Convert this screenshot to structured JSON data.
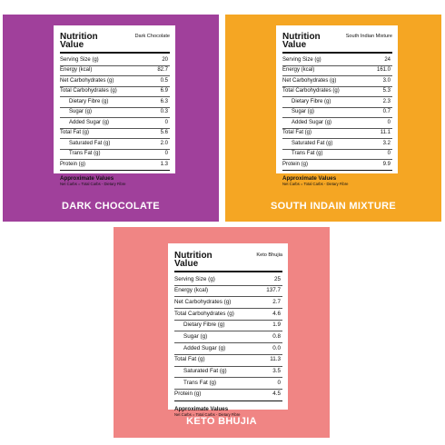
{
  "panels": [
    {
      "label": "DARK CHOCOLATE",
      "bg_color": "#a0409b",
      "card": {
        "title_line1": "Nutrition",
        "title_line2": "Value",
        "product": "Dark Chocolate",
        "rows": [
          {
            "label": "Serving Size (g)",
            "value": "20"
          },
          {
            "label": "Energy (kcal)",
            "value": "82.7"
          },
          {
            "label": "Net Carbohydrates (g)",
            "value": "0.5"
          },
          {
            "label": "Total Carbohydrates (g)",
            "value": "6.9"
          },
          {
            "label": "Dietary Fibre (g)",
            "value": "6.3"
          },
          {
            "label": "Sugar (g)",
            "value": "0.3"
          },
          {
            "label": "Added Sugar (g)",
            "value": "0"
          },
          {
            "label": "Total Fat (g)",
            "value": "5.6"
          },
          {
            "label": "Saturated Fat (g)",
            "value": "2.0"
          },
          {
            "label": "Trans Fat (g)",
            "value": "0"
          },
          {
            "label": "Protein (g)",
            "value": "1.3"
          }
        ],
        "approx_title": "Approximate Values",
        "approx_note": "Net Carbs = Total Carbs - Dietary Fibre"
      }
    },
    {
      "label": "SOUTH INDAIN MIXTURE",
      "bg_color": "#f5a623",
      "card": {
        "title_line1": "Nutrition",
        "title_line2": "Value",
        "product": "South Indian Mixture",
        "rows": [
          {
            "label": "Serving Size (g)",
            "value": "24"
          },
          {
            "label": "Energy (kcal)",
            "value": "161.0"
          },
          {
            "label": "Net Carbohydrates (g)",
            "value": "3.0"
          },
          {
            "label": "Total Carbohydrates (g)",
            "value": "5.3"
          },
          {
            "label": "Dietary Fibre (g)",
            "value": "2.3"
          },
          {
            "label": "Sugar (g)",
            "value": "0.7"
          },
          {
            "label": "Added Sugar (g)",
            "value": "0"
          },
          {
            "label": "Total Fat (g)",
            "value": "11.1"
          },
          {
            "label": "Saturated Fat (g)",
            "value": "3.2"
          },
          {
            "label": "Trans Fat (g)",
            "value": "0"
          },
          {
            "label": "Protein (g)",
            "value": "9.9"
          }
        ],
        "approx_title": "Approximate Values",
        "approx_note": "Net Carbs = Total Carbs - Dietary Fibre"
      }
    },
    {
      "label": "KETO BHUJIA",
      "bg_color": "#f08584",
      "card": {
        "title_line1": "Nutrition",
        "title_line2": "Value",
        "product": "Keto Bhujia",
        "rows": [
          {
            "label": "Serving Size (g)",
            "value": "25"
          },
          {
            "label": "Energy (kcal)",
            "value": "137.7"
          },
          {
            "label": "Net Carbohydrates (g)",
            "value": "2.7"
          },
          {
            "label": "Total Carbohydrates (g)",
            "value": "4.6"
          },
          {
            "label": "Dietary Fibre (g)",
            "value": "1.9"
          },
          {
            "label": "Sugar (g)",
            "value": "0.8"
          },
          {
            "label": "Added Sugar (g)",
            "value": "0.0"
          },
          {
            "label": "Total Fat (g)",
            "value": "11.3"
          },
          {
            "label": "Saturated Fat (g)",
            "value": "3.5"
          },
          {
            "label": "Trans Fat (g)",
            "value": "0"
          },
          {
            "label": "Protein (g)",
            "value": "4.5"
          }
        ],
        "approx_title": "Approximate Values",
        "approx_note": "Net Carbs = Total Carbs - Dietary Fibre"
      }
    }
  ]
}
